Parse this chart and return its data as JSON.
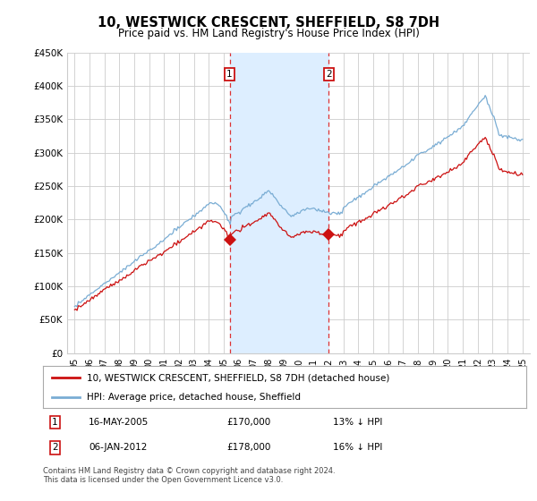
{
  "title": "10, WESTWICK CRESCENT, SHEFFIELD, S8 7DH",
  "subtitle": "Price paid vs. HM Land Registry's House Price Index (HPI)",
  "footer": "Contains HM Land Registry data © Crown copyright and database right 2024.\nThis data is licensed under the Open Government Licence v3.0.",
  "legend_line1": "10, WESTWICK CRESCENT, SHEFFIELD, S8 7DH (detached house)",
  "legend_line2": "HPI: Average price, detached house, Sheffield",
  "sale1_date": "16-MAY-2005",
  "sale1_price": "£170,000",
  "sale1_note": "13% ↓ HPI",
  "sale2_date": "06-JAN-2012",
  "sale2_price": "£178,000",
  "sale2_note": "16% ↓ HPI",
  "sale1_year": 2005.38,
  "sale1_value": 170000,
  "sale2_year": 2012.02,
  "sale2_value": 178000,
  "ylim": [
    0,
    450000
  ],
  "xlim": [
    1994.5,
    2025.5
  ],
  "yticks": [
    0,
    50000,
    100000,
    150000,
    200000,
    250000,
    300000,
    350000,
    400000,
    450000
  ],
  "ytick_labels": [
    "£0",
    "£50K",
    "£100K",
    "£150K",
    "£200K",
    "£250K",
    "£300K",
    "£350K",
    "£400K",
    "£450K"
  ],
  "xticks": [
    1995,
    1996,
    1997,
    1998,
    1999,
    2000,
    2001,
    2002,
    2003,
    2004,
    2005,
    2006,
    2007,
    2008,
    2009,
    2010,
    2011,
    2012,
    2013,
    2014,
    2015,
    2016,
    2017,
    2018,
    2019,
    2020,
    2021,
    2022,
    2023,
    2024,
    2025
  ],
  "hpi_color": "#7aadd4",
  "price_color": "#cc1111",
  "shade_color": "#ddeeff",
  "dashed_color": "#dd3333",
  "marker_box_color": "#cc1111",
  "grid_color": "#cccccc",
  "bg_color": "#ffffff"
}
